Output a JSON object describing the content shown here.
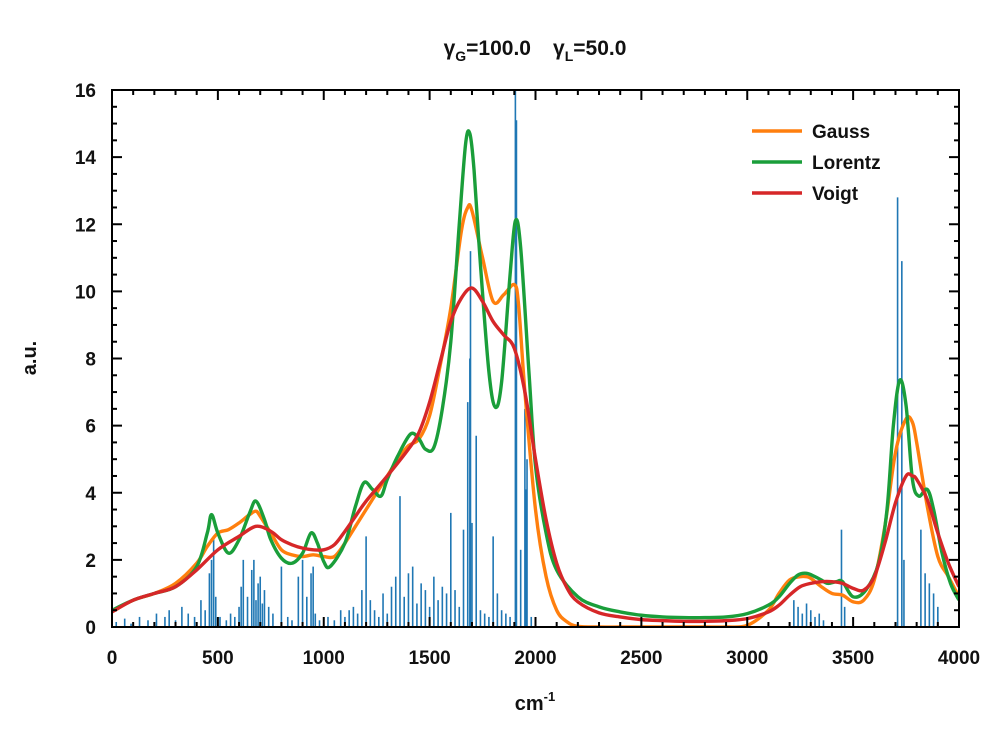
{
  "chart_data": {
    "type": "line",
    "title_parts": {
      "g_sym": "γ",
      "g_sub": "G",
      "g_val": "=100.0",
      "l_sym": "γ",
      "l_sub": "L",
      "l_val": "=50.0"
    },
    "xlabel": "cm",
    "xlabel_sup": "-1",
    "ylabel": "a.u.",
    "xlim": [
      0,
      4000
    ],
    "ylim": [
      0,
      16
    ],
    "xticks": [
      0,
      500,
      1000,
      1500,
      2000,
      2500,
      3000,
      3500,
      4000
    ],
    "yticks": [
      0,
      2,
      4,
      6,
      8,
      10,
      12,
      14,
      16
    ],
    "grid": false,
    "legend_position": "top-right",
    "colors": {
      "Gauss": "#ff7f0e",
      "Lorentz": "#1a9e3a",
      "Voigt": "#d62728",
      "sticks": "#1f77b4"
    },
    "series": [
      {
        "name": "Gauss",
        "x": [
          0,
          100,
          200,
          300,
          400,
          450,
          500,
          550,
          600,
          650,
          680,
          700,
          750,
          800,
          850,
          900,
          950,
          1000,
          1050,
          1100,
          1150,
          1200,
          1250,
          1300,
          1350,
          1400,
          1450,
          1500,
          1550,
          1600,
          1650,
          1680,
          1700,
          1750,
          1800,
          1850,
          1900,
          1920,
          1950,
          2000,
          2050,
          2100,
          2150,
          2200,
          2300,
          2400,
          2500,
          2600,
          2700,
          2800,
          2900,
          3000,
          3100,
          3150,
          3200,
          3250,
          3280,
          3300,
          3350,
          3400,
          3450,
          3500,
          3550,
          3600,
          3650,
          3700,
          3750,
          3780,
          3800,
          3850,
          3900,
          3950,
          4000
        ],
        "y": [
          0.45,
          0.8,
          1.0,
          1.3,
          1.9,
          2.4,
          2.8,
          2.9,
          3.1,
          3.35,
          3.45,
          3.3,
          2.8,
          2.3,
          2.15,
          2.1,
          2.15,
          2.1,
          2.1,
          2.5,
          3.0,
          3.5,
          4.0,
          4.5,
          5.0,
          5.4,
          5.6,
          6.3,
          7.8,
          9.5,
          11.8,
          12.5,
          12.4,
          11.0,
          9.7,
          9.9,
          10.2,
          9.6,
          7.0,
          3.5,
          1.5,
          0.5,
          0.15,
          0.02,
          0,
          0,
          0,
          0,
          0,
          0,
          0,
          0.05,
          0.5,
          1.0,
          1.4,
          1.5,
          1.5,
          1.45,
          1.2,
          1.0,
          0.95,
          0.75,
          0.8,
          1.4,
          3.0,
          5.2,
          6.2,
          6.1,
          5.5,
          3.6,
          2.1,
          1.5,
          0.9
        ]
      },
      {
        "name": "Lorentz",
        "x": [
          0,
          100,
          200,
          300,
          400,
          450,
          470,
          500,
          550,
          600,
          650,
          680,
          720,
          750,
          800,
          850,
          900,
          940,
          970,
          1000,
          1030,
          1100,
          1150,
          1190,
          1230,
          1270,
          1300,
          1350,
          1410,
          1450,
          1480,
          1520,
          1560,
          1600,
          1640,
          1670,
          1690,
          1710,
          1740,
          1780,
          1810,
          1840,
          1880,
          1905,
          1930,
          1970,
          2000,
          2050,
          2100,
          2200,
          2300,
          2400,
          2500,
          2600,
          2700,
          2800,
          2900,
          3000,
          3100,
          3150,
          3200,
          3240,
          3280,
          3320,
          3350,
          3380,
          3420,
          3450,
          3500,
          3560,
          3620,
          3660,
          3690,
          3720,
          3750,
          3780,
          3810,
          3850,
          3880,
          3920,
          3960,
          4000
        ],
        "y": [
          0.5,
          0.8,
          1.0,
          1.2,
          1.8,
          2.8,
          3.35,
          2.8,
          2.2,
          2.6,
          3.4,
          3.75,
          3.2,
          2.6,
          2.05,
          1.9,
          2.2,
          2.8,
          2.5,
          1.95,
          1.8,
          2.5,
          3.6,
          4.3,
          4.1,
          3.9,
          4.4,
          5.1,
          5.75,
          5.6,
          5.3,
          5.35,
          6.5,
          8.5,
          12.0,
          14.4,
          14.7,
          13.6,
          10.8,
          7.6,
          6.55,
          7.3,
          10.5,
          12.1,
          11.3,
          7.5,
          4.8,
          2.8,
          1.7,
          0.9,
          0.6,
          0.45,
          0.35,
          0.3,
          0.28,
          0.28,
          0.3,
          0.4,
          0.65,
          0.9,
          1.3,
          1.55,
          1.6,
          1.5,
          1.4,
          1.3,
          1.35,
          1.35,
          0.9,
          1.1,
          1.9,
          3.5,
          6.0,
          7.35,
          6.6,
          4.4,
          3.9,
          4.1,
          3.5,
          2.2,
          1.3,
          0.8
        ]
      },
      {
        "name": "Voigt",
        "x": [
          0,
          100,
          200,
          300,
          400,
          500,
          600,
          680,
          750,
          800,
          850,
          900,
          950,
          1000,
          1050,
          1100,
          1150,
          1200,
          1300,
          1400,
          1450,
          1500,
          1550,
          1600,
          1650,
          1700,
          1750,
          1800,
          1850,
          1900,
          1950,
          2000,
          2050,
          2100,
          2150,
          2200,
          2300,
          2400,
          2500,
          2600,
          2700,
          2800,
          2900,
          3000,
          3100,
          3150,
          3200,
          3250,
          3300,
          3350,
          3400,
          3450,
          3500,
          3550,
          3600,
          3650,
          3700,
          3750,
          3780,
          3800,
          3850,
          3900,
          3950,
          4000
        ],
        "y": [
          0.45,
          0.8,
          1.0,
          1.2,
          1.7,
          2.3,
          2.7,
          3.0,
          2.85,
          2.6,
          2.45,
          2.35,
          2.3,
          2.3,
          2.45,
          2.85,
          3.3,
          3.75,
          4.5,
          5.3,
          5.8,
          6.7,
          7.9,
          9.1,
          9.8,
          10.1,
          9.7,
          9.1,
          8.7,
          8.3,
          7.0,
          5.0,
          3.2,
          1.9,
          1.15,
          0.75,
          0.42,
          0.3,
          0.22,
          0.19,
          0.17,
          0.17,
          0.19,
          0.25,
          0.45,
          0.65,
          0.95,
          1.2,
          1.3,
          1.35,
          1.35,
          1.3,
          1.15,
          1.1,
          1.5,
          2.5,
          3.7,
          4.5,
          4.5,
          4.4,
          3.8,
          2.8,
          1.9,
          1.2
        ]
      }
    ],
    "sticks": {
      "x": [
        20,
        60,
        90,
        130,
        170,
        210,
        250,
        270,
        300,
        330,
        360,
        390,
        420,
        440,
        460,
        470,
        480,
        490,
        510,
        540,
        560,
        580,
        600,
        610,
        620,
        640,
        660,
        670,
        680,
        690,
        700,
        710,
        720,
        740,
        760,
        800,
        830,
        850,
        880,
        900,
        920,
        940,
        950,
        960,
        980,
        1020,
        1050,
        1080,
        1100,
        1120,
        1140,
        1160,
        1180,
        1200,
        1220,
        1240,
        1260,
        1280,
        1300,
        1320,
        1340,
        1360,
        1380,
        1400,
        1420,
        1440,
        1460,
        1480,
        1500,
        1520,
        1540,
        1560,
        1580,
        1600,
        1620,
        1640,
        1660,
        1680,
        1690,
        1693,
        1700,
        1720,
        1740,
        1760,
        1780,
        1800,
        1820,
        1840,
        1860,
        1880,
        1905,
        1910,
        1930,
        1950,
        1955,
        1960,
        1980,
        2000,
        3220,
        3240,
        3260,
        3280,
        3300,
        3320,
        3340,
        3360,
        3445,
        3460,
        3710,
        3730,
        3740,
        3820,
        3840,
        3860,
        3880,
        3900
      ],
      "y": [
        0.15,
        0.25,
        0.1,
        0.3,
        0.2,
        0.4,
        0.3,
        0.5,
        0.2,
        0.6,
        0.4,
        0.3,
        0.8,
        0.5,
        1.6,
        2.0,
        2.7,
        0.9,
        0.3,
        0.2,
        0.4,
        0.3,
        0.6,
        1.2,
        2.0,
        0.9,
        1.7,
        2.0,
        0.8,
        1.3,
        1.5,
        0.7,
        1.1,
        0.6,
        0.4,
        1.8,
        0.3,
        0.2,
        1.5,
        2.0,
        0.9,
        1.6,
        1.8,
        0.4,
        0.2,
        0.3,
        0.2,
        0.5,
        0.3,
        0.5,
        0.6,
        0.4,
        1.1,
        2.7,
        0.8,
        0.5,
        0.3,
        1.0,
        0.4,
        1.2,
        1.5,
        3.9,
        0.9,
        1.6,
        1.8,
        0.7,
        1.3,
        1.1,
        0.6,
        1.5,
        0.8,
        1.2,
        1.0,
        3.4,
        1.1,
        0.6,
        2.9,
        6.7,
        8.0,
        11.2,
        3.1,
        5.7,
        0.5,
        0.4,
        0.3,
        2.7,
        1.0,
        0.5,
        0.4,
        0.3,
        16.0,
        15.1,
        2.3,
        6.5,
        4.1,
        5.0,
        0.3,
        0.2,
        0.8,
        0.6,
        0.4,
        0.7,
        0.5,
        0.3,
        0.4,
        0.2,
        2.9,
        0.6,
        12.8,
        10.9,
        2.0,
        2.9,
        1.6,
        1.3,
        1.0,
        0.6
      ]
    }
  }
}
